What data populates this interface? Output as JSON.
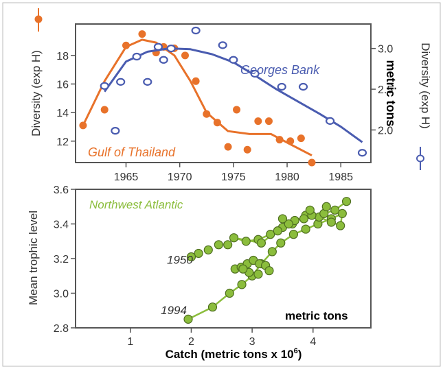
{
  "chart_data": [
    {
      "type": "scatter",
      "xlabel": "",
      "x_ticks": [
        1965,
        1970,
        1975,
        1980,
        1985
      ],
      "xlim": [
        1960.3,
        1987.8
      ],
      "ylabel": "Diversity (exp H)",
      "y_ticks": [
        12,
        14,
        16,
        18
      ],
      "ylim": [
        10.5,
        20.2
      ],
      "y2label": "Diversity (exp H)",
      "y2_ticks": [
        "2.0",
        "2.5",
        "3.0"
      ],
      "y2lim": [
        1.6,
        3.3
      ],
      "side_note": "metric tons",
      "series": [
        {
          "name": "Gulf of Thailand",
          "axis": "left",
          "color": "#e8722a",
          "points": [
            [
              1961,
              13.1
            ],
            [
              1963,
              14.2
            ],
            [
              1965,
              18.7
            ],
            [
              1966.5,
              19.5
            ],
            [
              1967.8,
              18.2
            ],
            [
              1968.5,
              18.6
            ],
            [
              1969.5,
              18.5
            ],
            [
              1970.5,
              18.0
            ],
            [
              1971.5,
              16.2
            ],
            [
              1972.5,
              13.9
            ],
            [
              1973.5,
              13.3
            ],
            [
              1974.5,
              11.6
            ],
            [
              1975.3,
              14.2
            ],
            [
              1976.3,
              11.4
            ],
            [
              1977.3,
              13.4
            ],
            [
              1978.3,
              13.4
            ],
            [
              1979.3,
              12.1
            ],
            [
              1980.3,
              12.0
            ],
            [
              1981.3,
              12.2
            ],
            [
              1982.3,
              10.5
            ]
          ],
          "trend": [
            [
              1961,
              13.1
            ],
            [
              1963,
              16.2
            ],
            [
              1965,
              18.6
            ],
            [
              1966.5,
              19.1
            ],
            [
              1967.8,
              18.9
            ],
            [
              1969.5,
              18.0
            ],
            [
              1971,
              16.2
            ],
            [
              1972.5,
              14.0
            ],
            [
              1974.5,
              12.7
            ],
            [
              1976.5,
              12.5
            ],
            [
              1978.5,
              12.5
            ],
            [
              1980.5,
              11.7
            ],
            [
              1982.3,
              11.0
            ]
          ]
        },
        {
          "name": "Georges Bank",
          "axis": "right",
          "color": "#4a5cb0",
          "points": [
            [
              1963,
              2.54
            ],
            [
              1964,
              1.99
            ],
            [
              1964.5,
              2.59
            ],
            [
              1966,
              2.9
            ],
            [
              1967,
              2.59
            ],
            [
              1968,
              3.02
            ],
            [
              1968.5,
              2.86
            ],
            [
              1969.2,
              3.0
            ],
            [
              1971.5,
              3.22
            ],
            [
              1974,
              3.04
            ],
            [
              1975,
              2.86
            ],
            [
              1977,
              2.69
            ],
            [
              1979.5,
              2.53
            ],
            [
              1981.5,
              2.53
            ],
            [
              1984,
              2.11
            ],
            [
              1987,
              1.72
            ]
          ],
          "trend": [
            [
              1963,
              2.47
            ],
            [
              1965,
              2.84
            ],
            [
              1967,
              2.96
            ],
            [
              1969,
              3.0
            ],
            [
              1971,
              2.99
            ],
            [
              1973,
              2.93
            ],
            [
              1975,
              2.83
            ],
            [
              1977,
              2.67
            ],
            [
              1979,
              2.5
            ],
            [
              1981,
              2.35
            ],
            [
              1983,
              2.2
            ],
            [
              1985,
              2.04
            ],
            [
              1987,
              1.85
            ]
          ]
        }
      ]
    },
    {
      "type": "scatter",
      "xlabel": "Catch (metric tons x 10",
      "xlabel_sup": "6",
      "xlabel_end": ")",
      "x_ticks": [
        1,
        2,
        3,
        4
      ],
      "xlim": [
        0.1,
        4.95
      ],
      "ylabel": "Mean trophic level",
      "y_ticks": [
        "2.8",
        "3.0",
        "3.2",
        "3.4",
        "3.6"
      ],
      "ylim": [
        2.8,
        3.6
      ],
      "side_note": "metric tons",
      "series": [
        {
          "name": "Northwest Atlantic",
          "color": "#8bbd3c",
          "points": [
            [
              1.95,
              2.85
            ],
            [
              2.35,
              2.92
            ],
            [
              2.63,
              3.0
            ],
            [
              2.83,
              3.05
            ],
            [
              3.0,
              3.1
            ],
            [
              3.15,
              3.17
            ],
            [
              3.33,
              3.24
            ],
            [
              3.47,
              3.29
            ],
            [
              3.68,
              3.34
            ],
            [
              3.88,
              3.37
            ],
            [
              4.08,
              3.4
            ],
            [
              4.3,
              3.43
            ],
            [
              4.48,
              3.46
            ],
            [
              4.45,
              3.39
            ],
            [
              4.3,
              3.41
            ],
            [
              4.1,
              3.44
            ],
            [
              3.88,
              3.45
            ],
            [
              3.66,
              3.4
            ],
            [
              3.5,
              3.38
            ],
            [
              3.3,
              3.34
            ],
            [
              3.1,
              3.31
            ],
            [
              2.9,
              3.3
            ],
            [
              2.7,
              3.32
            ],
            [
              3.15,
              3.29
            ],
            [
              3.42,
              3.36
            ],
            [
              3.7,
              3.42
            ],
            [
              3.98,
              3.45
            ],
            [
              4.18,
              3.46
            ],
            [
              4.36,
              3.48
            ],
            [
              4.55,
              3.53
            ],
            [
              4.22,
              3.5
            ],
            [
              3.95,
              3.48
            ],
            [
              3.85,
              3.43
            ],
            [
              3.6,
              3.4
            ],
            [
              3.5,
              3.43
            ],
            [
              2.6,
              3.28
            ],
            [
              2.45,
              3.28
            ],
            [
              2.28,
              3.25
            ],
            [
              2.12,
              3.23
            ],
            [
              2.0,
              3.21
            ],
            [
              2.72,
              3.14
            ],
            [
              2.82,
              3.15
            ],
            [
              2.92,
              3.17
            ],
            [
              3.02,
              3.19
            ],
            [
              3.12,
              3.17
            ],
            [
              3.22,
              3.16
            ],
            [
              3.28,
              3.13
            ],
            [
              3.1,
              3.11
            ],
            [
              2.95,
              3.12
            ],
            [
              2.85,
              3.14
            ]
          ],
          "path": [
            [
              1.95,
              2.85
            ],
            [
              2.35,
              2.92
            ],
            [
              2.63,
              3.0
            ],
            [
              2.83,
              3.05
            ],
            [
              3.0,
              3.1
            ],
            [
              3.15,
              3.17
            ],
            [
              3.33,
              3.24
            ],
            [
              3.47,
              3.29
            ],
            [
              3.68,
              3.34
            ],
            [
              3.88,
              3.37
            ],
            [
              4.08,
              3.4
            ],
            [
              4.3,
              3.43
            ],
            [
              4.48,
              3.46
            ],
            [
              4.45,
              3.39
            ],
            [
              4.3,
              3.41
            ],
            [
              4.1,
              3.44
            ],
            [
              3.88,
              3.45
            ],
            [
              3.66,
              3.4
            ],
            [
              3.5,
              3.38
            ],
            [
              3.3,
              3.34
            ],
            [
              3.1,
              3.31
            ],
            [
              2.9,
              3.3
            ],
            [
              2.7,
              3.32
            ],
            [
              3.15,
              3.29
            ],
            [
              3.42,
              3.36
            ],
            [
              3.7,
              3.42
            ],
            [
              3.98,
              3.45
            ],
            [
              4.18,
              3.46
            ],
            [
              4.36,
              3.48
            ],
            [
              4.55,
              3.53
            ]
          ]
        }
      ],
      "annotations": [
        {
          "text": "1950",
          "x": 1.6,
          "y": 3.17
        },
        {
          "text": "1994",
          "x": 1.5,
          "y": 2.88
        }
      ]
    }
  ]
}
